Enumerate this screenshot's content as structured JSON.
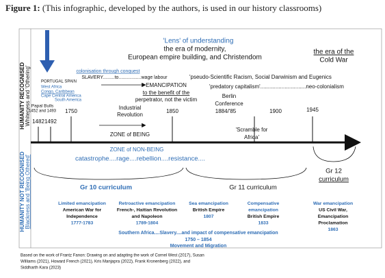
{
  "title": {
    "label": "Figure 1:",
    "text": "(This infographic, developed by the authors, is used in our history classrooms)"
  },
  "side_labels": {
    "recognised": {
      "title": "HUMANITY RECOGNISED",
      "subtitle": "Whiteness and 'Othering'"
    },
    "not_recognised": {
      "title": "HUMANITY NOT RECOGNISED",
      "subtitle": "Blackness and 'Being Othered'"
    }
  },
  "lens": {
    "heading": "'Lens' of understanding",
    "era": [
      "the era of modernity,",
      "European empire building, and Christendom"
    ]
  },
  "cold_war": [
    "the era of the",
    "Cold War"
  ],
  "colonisation": [
    "colonisation through conquest",
    "SLAVERY.........to.................wage labour"
  ],
  "origins": [
    "PORTUGAL   SPAIN",
    "West Africa",
    "Congo, Caribbean",
    "Cape   Central America",
    "South America"
  ],
  "emancipation": [
    "EMANCIPATION",
    "to the benefit of the",
    "perpetrator, not the victim"
  ],
  "racism": "'pseudo-Scientific Racism, Social Darwinism and Eugenics",
  "capitalism": "'predatory capitalism'..............................neo-colonialism",
  "berlin": [
    "Berlin",
    "Conference"
  ],
  "papal_bulls": [
    "Papal Bulls",
    "1452 and 1493"
  ],
  "industrial": [
    "Industrial",
    "Revolution"
  ],
  "dates": [
    "1482",
    "1492",
    "1750",
    "1850",
    "1884/'85",
    "1900",
    "1945"
  ],
  "scramble": [
    "'Scramble for",
    "Africa'"
  ],
  "zones": {
    "being": "ZONE of BEING",
    "non_being": "ZONE of NON-BEING"
  },
  "responses": "catastrophe....rage....rebellion....resistance....",
  "curricula": [
    "Gr 10 curriculum",
    "Gr 11 curriculum",
    [
      "Gr 12",
      "curriculum"
    ]
  ],
  "emancipation_types": [
    [
      "Limited emancipation",
      "American War for",
      "Independence",
      "1777-1783"
    ],
    [
      "Retroactive emancipation",
      "French-, Haitian Revolution",
      "and Napoleon",
      "1789-1804"
    ],
    [
      "Sea emancipation",
      "British Empire",
      "1807"
    ],
    [
      "Compensative",
      "emancipation",
      "British Empire",
      "1833"
    ],
    [
      "War emancipation",
      "US Civil War,",
      "Emancipation",
      "Proclamation",
      "1863"
    ]
  ],
  "southern_africa": [
    "Southern Africa....Slavery....and impact of compensative emancipation",
    "1750 – 1854",
    "Movement and Migration"
  ],
  "footnote": [
    "Based on the work of Frantz Fanon: Drawing on and adapting the work of Cornel West (2017), Susan",
    "Williams (2021), Howard French (2021), Kris Manjapra (2022), Frank Kronenberg (2022), and",
    "Siddharth Kara (2023)"
  ]
}
